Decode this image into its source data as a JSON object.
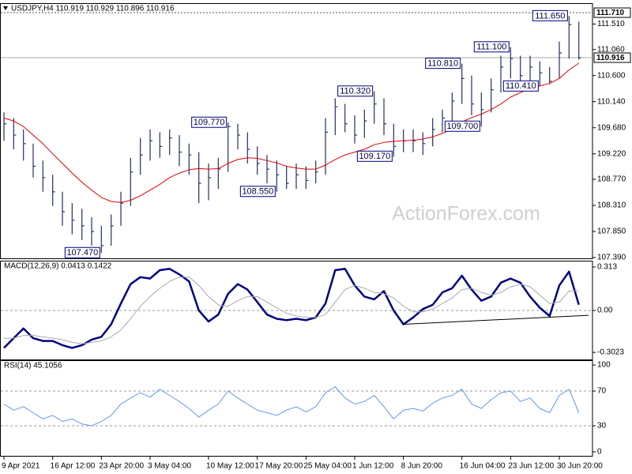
{
  "chart_data": [
    {
      "type": "ohlc",
      "title": "USDJPY,H4  110.919 110.929 110.896 110.916",
      "watermark": "ActionForex.com",
      "color": "#34406b",
      "xlim": [
        0,
        60
      ],
      "ylim": [
        107.39,
        111.85
      ],
      "yticks": [
        {
          "value": 111.51,
          "label": "111.510"
        },
        {
          "value": 111.06,
          "label": "111.060"
        },
        {
          "value": 110.6,
          "label": "110.600"
        },
        {
          "value": 110.14,
          "label": "110.140"
        },
        {
          "value": 109.68,
          "label": "109.680"
        },
        {
          "value": 109.22,
          "label": "109.220"
        },
        {
          "value": 108.77,
          "label": "108.770"
        },
        {
          "value": 108.31,
          "label": "108.310"
        },
        {
          "value": 107.85,
          "label": "107.850"
        },
        {
          "value": 107.39,
          "label": "107.390"
        }
      ],
      "hlines": [
        {
          "value": 111.71,
          "label": "111.710",
          "style": "dashed"
        },
        {
          "value": 110.916,
          "label": "110.916",
          "style": "solid"
        }
      ],
      "high": [
        109.95,
        109.85,
        109.65,
        109.4,
        109.1,
        108.85,
        108.55,
        108.35,
        108.25,
        108.1,
        107.95,
        108.15,
        108.55,
        109.15,
        109.5,
        109.65,
        109.6,
        109.65,
        109.55,
        109.4,
        109.25,
        109.05,
        109.15,
        109.77,
        109.75,
        109.6,
        109.35,
        109.2,
        109.1,
        109.0,
        109.05,
        109.0,
        109.1,
        109.85,
        110.2,
        110.1,
        109.9,
        110.0,
        110.32,
        110.2,
        109.75,
        109.65,
        109.65,
        109.6,
        109.85,
        110.0,
        110.3,
        110.81,
        110.6,
        110.3,
        110.55,
        110.95,
        111.1,
        110.95,
        110.95,
        110.85,
        110.75,
        111.2,
        111.65,
        111.55
      ],
      "low": [
        109.45,
        109.3,
        109.1,
        108.8,
        108.55,
        108.3,
        107.95,
        107.8,
        107.7,
        107.6,
        107.47,
        107.6,
        107.95,
        108.3,
        108.85,
        109.1,
        109.15,
        109.2,
        109.0,
        108.85,
        108.35,
        108.4,
        108.6,
        108.9,
        109.3,
        109.05,
        108.85,
        108.7,
        108.55,
        108.6,
        108.6,
        108.6,
        108.7,
        108.85,
        109.55,
        109.6,
        109.4,
        109.5,
        109.75,
        109.55,
        109.17,
        109.25,
        109.25,
        109.2,
        109.35,
        109.6,
        109.8,
        110.1,
        109.9,
        109.7,
        109.95,
        110.3,
        110.55,
        110.45,
        110.5,
        110.41,
        110.45,
        110.55,
        110.9,
        110.88
      ],
      "close": [
        109.75,
        109.55,
        109.4,
        109.0,
        108.8,
        108.55,
        108.2,
        108.05,
        107.95,
        107.85,
        107.6,
        107.95,
        108.35,
        108.9,
        109.2,
        109.45,
        109.35,
        109.5,
        109.25,
        109.2,
        108.7,
        108.8,
        108.95,
        109.7,
        109.55,
        109.3,
        109.05,
        108.95,
        108.85,
        108.7,
        108.85,
        108.75,
        108.9,
        109.6,
        110.05,
        109.75,
        109.55,
        109.8,
        110.1,
        109.75,
        109.35,
        109.45,
        109.45,
        109.4,
        109.65,
        109.85,
        110.15,
        110.55,
        110.1,
        110.0,
        110.35,
        110.75,
        110.9,
        110.6,
        110.75,
        110.65,
        110.5,
        111.0,
        111.5,
        110.916
      ],
      "series": [
        {
          "color": "#e00000",
          "values": [
            109.85,
            109.8,
            109.7,
            109.55,
            109.4,
            109.22,
            109.05,
            108.88,
            108.72,
            108.58,
            108.45,
            108.38,
            108.36,
            108.4,
            108.48,
            108.58,
            108.68,
            108.8,
            108.88,
            108.94,
            108.96,
            108.95,
            108.96,
            109.05,
            109.12,
            109.15,
            109.14,
            109.1,
            109.06,
            109.0,
            108.97,
            108.95,
            108.95,
            109.02,
            109.12,
            109.2,
            109.25,
            109.3,
            109.38,
            109.42,
            109.44,
            109.45,
            109.46,
            109.48,
            109.52,
            109.58,
            109.66,
            109.78,
            109.86,
            109.92,
            110.0,
            110.1,
            110.22,
            110.3,
            110.38,
            110.42,
            110.46,
            110.55,
            110.7,
            110.82
          ]
        }
      ],
      "annotations": [
        {
          "label": "107.470",
          "value": 107.47,
          "x": 10
        },
        {
          "label": "109.770",
          "value": 109.77,
          "x": 23
        },
        {
          "label": "108.550",
          "value": 108.55,
          "x": 28
        },
        {
          "label": "110.320",
          "value": 110.32,
          "x": 38
        },
        {
          "label": "109.170",
          "value": 109.17,
          "x": 40
        },
        {
          "label": "110.810",
          "value": 110.81,
          "x": 47
        },
        {
          "label": "109.700",
          "value": 109.7,
          "x": 49
        },
        {
          "label": "111.100",
          "value": 111.1,
          "x": 52
        },
        {
          "label": "110.410",
          "value": 110.41,
          "x": 55
        },
        {
          "label": "111.650",
          "value": 111.65,
          "x": 58
        }
      ]
    },
    {
      "type": "line",
      "title": "MACD(12,26,9) 0.0413 0.1422",
      "xlim": [
        0,
        60
      ],
      "ylim": [
        -0.353,
        0.347
      ],
      "yticks": [
        0.313,
        {
          "value": 0,
          "label": "0.00"
        },
        -0.3023
      ],
      "levels": [
        0
      ],
      "series": [
        {
          "color": "#000080",
          "width": 2.5,
          "values": [
            -0.27,
            -0.2,
            -0.13,
            -0.2,
            -0.22,
            -0.22,
            -0.25,
            -0.27,
            -0.25,
            -0.21,
            -0.19,
            -0.1,
            0.05,
            0.19,
            0.24,
            0.23,
            0.29,
            0.3,
            0.26,
            0.21,
            0.0,
            -0.08,
            -0.03,
            0.12,
            0.19,
            0.15,
            0.06,
            -0.03,
            -0.06,
            -0.07,
            -0.06,
            -0.07,
            -0.05,
            0.05,
            0.29,
            0.3,
            0.18,
            0.1,
            0.08,
            0.14,
            0.0,
            -0.1,
            -0.05,
            0.01,
            0.04,
            0.13,
            0.16,
            0.25,
            0.15,
            0.07,
            0.1,
            0.2,
            0.23,
            0.2,
            0.1,
            0.02,
            -0.04,
            0.18,
            0.28,
            0.0413
          ]
        },
        {
          "color": "#a8a8a8",
          "width": 1,
          "values": [
            -0.2,
            -0.2,
            -0.18,
            -0.18,
            -0.19,
            -0.2,
            -0.21,
            -0.23,
            -0.24,
            -0.23,
            -0.22,
            -0.19,
            -0.14,
            -0.06,
            0.03,
            0.1,
            0.16,
            0.21,
            0.24,
            0.24,
            0.18,
            0.1,
            0.04,
            0.03,
            0.07,
            0.1,
            0.1,
            0.06,
            0.02,
            -0.02,
            -0.04,
            -0.05,
            -0.05,
            -0.03,
            0.06,
            0.15,
            0.18,
            0.16,
            0.13,
            0.12,
            0.09,
            0.03,
            -0.01,
            -0.01,
            0.01,
            0.05,
            0.09,
            0.15,
            0.16,
            0.13,
            0.11,
            0.13,
            0.17,
            0.19,
            0.17,
            0.11,
            0.05,
            0.06,
            0.14,
            0.1422
          ]
        }
      ],
      "trendline": {
        "x": [
          41,
          60
        ],
        "y": [
          -0.1,
          -0.035
        ]
      }
    },
    {
      "type": "line",
      "title": "RSI(14) 45.1056",
      "xlim": [
        0,
        60
      ],
      "ylim": [
        -5.5,
        105.5
      ],
      "yticks": [
        100,
        70,
        30,
        0
      ],
      "levels": [
        70,
        30
      ],
      "series": [
        {
          "color": "#6495ed",
          "width": 1,
          "values": [
            55,
            48,
            52,
            45,
            38,
            42,
            35,
            38,
            32,
            30,
            35,
            42,
            55,
            62,
            68,
            63,
            72,
            65,
            58,
            50,
            40,
            48,
            55,
            70,
            62,
            55,
            48,
            45,
            42,
            48,
            52,
            46,
            52,
            68,
            75,
            62,
            55,
            58,
            65,
            52,
            38,
            48,
            50,
            47,
            56,
            62,
            65,
            72,
            55,
            50,
            60,
            68,
            70,
            58,
            62,
            50,
            45,
            65,
            72,
            45.1056
          ]
        }
      ],
      "xticks": [
        {
          "value": 0,
          "label": "9 Apr 2021"
        },
        {
          "value": 5,
          "label": "16 Apr 12:00"
        },
        {
          "value": 10,
          "label": "23 Apr 20:00"
        },
        {
          "value": 15,
          "label": "3 May 04:00"
        },
        {
          "value": 21,
          "label": "10 May 12:00"
        },
        {
          "value": 26,
          "label": "17 May 20:00"
        },
        {
          "value": 31,
          "label": "25 May 04:00"
        },
        {
          "value": 36,
          "label": "1 Jun 12:00"
        },
        {
          "value": 41,
          "label": "8 Jun 20:00"
        },
        {
          "value": 47,
          "label": "16 Jun 04:00"
        },
        {
          "value": 52,
          "label": "23 Jun 12:00"
        },
        {
          "value": 57,
          "label": "30 Jun 20:00"
        }
      ]
    }
  ]
}
